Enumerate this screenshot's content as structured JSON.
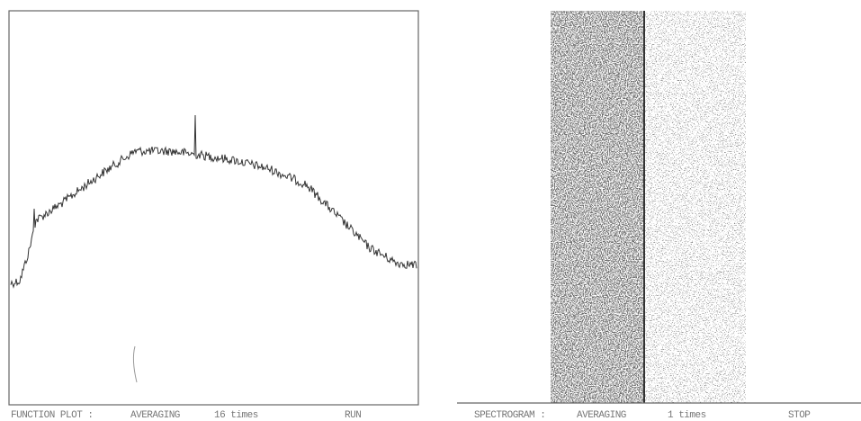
{
  "left_panel": {
    "mode": "FUNCTION PLOT :",
    "averaging": "AVERAGING",
    "count": "16 times",
    "state": "RUN"
  },
  "right_panel": {
    "mode": "SPECTROGRAM :",
    "averaging": "AVERAGING",
    "count": "1 times",
    "state": "STOP"
  }
}
